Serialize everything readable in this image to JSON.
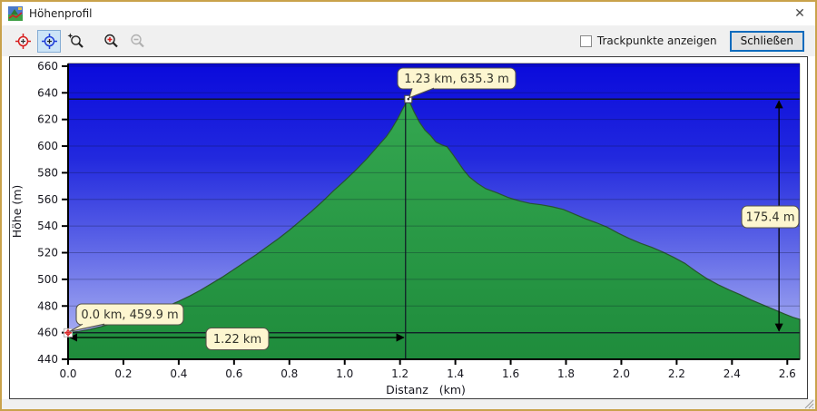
{
  "window": {
    "title": "Höhenprofil",
    "close_glyph": "✕"
  },
  "toolbar": {
    "tools": [
      {
        "icon": "red-target-icon",
        "selected": false
      },
      {
        "icon": "blue-target-icon",
        "selected": true
      },
      {
        "icon": "zoom-select-icon",
        "selected": false
      },
      {
        "icon": "zoom-in-icon",
        "selected": false
      },
      {
        "icon": "zoom-out-icon",
        "selected": false,
        "disabled": true
      }
    ],
    "trackpoints_label": "Trackpunkte anzeigen",
    "trackpoints_checked": false,
    "close_button": "Schließen"
  },
  "chart_data": {
    "type": "area",
    "title": "",
    "xlabel": "Distanz   (km)",
    "ylabel": "Höhe (m)",
    "xlim": [
      0,
      2.645
    ],
    "ylim": [
      440,
      662
    ],
    "xticks": [
      0.0,
      0.2,
      0.4,
      0.6,
      0.8,
      1.0,
      1.2,
      1.4,
      1.6,
      1.8,
      2.0,
      2.2,
      2.4,
      2.6
    ],
    "yticks": [
      440,
      460,
      480,
      500,
      520,
      540,
      560,
      580,
      600,
      620,
      640,
      660
    ],
    "grid": "horizontal",
    "series": [
      {
        "name": "elevation-profile",
        "points": [
          [
            0.0,
            459.9
          ],
          [
            0.04,
            461
          ],
          [
            0.08,
            462.5
          ],
          [
            0.12,
            464.5
          ],
          [
            0.16,
            467
          ],
          [
            0.2,
            469.5
          ],
          [
            0.24,
            472
          ],
          [
            0.28,
            474.5
          ],
          [
            0.32,
            477
          ],
          [
            0.36,
            480
          ],
          [
            0.4,
            483.5
          ],
          [
            0.44,
            487.5
          ],
          [
            0.48,
            492
          ],
          [
            0.52,
            497
          ],
          [
            0.56,
            502
          ],
          [
            0.6,
            507.5
          ],
          [
            0.64,
            513
          ],
          [
            0.68,
            518.5
          ],
          [
            0.72,
            524.5
          ],
          [
            0.76,
            530.5
          ],
          [
            0.8,
            537
          ],
          [
            0.84,
            544
          ],
          [
            0.88,
            551
          ],
          [
            0.92,
            558.5
          ],
          [
            0.96,
            566.5
          ],
          [
            1.0,
            574
          ],
          [
            1.04,
            582
          ],
          [
            1.08,
            590.5
          ],
          [
            1.12,
            600
          ],
          [
            1.15,
            607
          ],
          [
            1.17,
            613
          ],
          [
            1.19,
            620
          ],
          [
            1.21,
            628
          ],
          [
            1.23,
            635.3
          ],
          [
            1.25,
            626
          ],
          [
            1.27,
            618
          ],
          [
            1.29,
            612
          ],
          [
            1.31,
            608
          ],
          [
            1.33,
            603
          ],
          [
            1.35,
            601
          ],
          [
            1.37,
            599.5
          ],
          [
            1.39,
            594
          ],
          [
            1.41,
            588
          ],
          [
            1.43,
            582
          ],
          [
            1.45,
            577
          ],
          [
            1.48,
            572
          ],
          [
            1.51,
            568
          ],
          [
            1.55,
            565
          ],
          [
            1.59,
            561.5
          ],
          [
            1.63,
            559
          ],
          [
            1.67,
            557
          ],
          [
            1.71,
            556
          ],
          [
            1.75,
            554.5
          ],
          [
            1.79,
            552.5
          ],
          [
            1.83,
            549
          ],
          [
            1.87,
            545.5
          ],
          [
            1.91,
            542.5
          ],
          [
            1.95,
            539
          ],
          [
            1.99,
            534.5
          ],
          [
            2.03,
            530.5
          ],
          [
            2.07,
            527
          ],
          [
            2.11,
            524
          ],
          [
            2.15,
            520.5
          ],
          [
            2.19,
            516.5
          ],
          [
            2.23,
            512
          ],
          [
            2.27,
            506
          ],
          [
            2.31,
            500.5
          ],
          [
            2.35,
            496
          ],
          [
            2.39,
            492
          ],
          [
            2.43,
            488.5
          ],
          [
            2.47,
            484.5
          ],
          [
            2.51,
            481
          ],
          [
            2.55,
            477.5
          ],
          [
            2.59,
            474
          ],
          [
            2.62,
            471.5
          ],
          [
            2.645,
            470
          ]
        ]
      }
    ],
    "annotations": {
      "peak": {
        "x": 1.23,
        "y": 635.3,
        "label": "1.23 km, 635.3 m"
      },
      "start": {
        "x": 0.0,
        "y": 459.9,
        "label": "0.0 km, 459.9 m"
      },
      "horizontal_span": {
        "from_x": 0.0,
        "to_x": 1.22,
        "label": "1.22 km"
      },
      "vertical_span": {
        "top": 635.3,
        "bottom": 459.9,
        "at_x": 2.57,
        "label": "175.4 m"
      }
    },
    "colors": {
      "sky_top": "#0a0adc",
      "sky_mid": "#5a62e6",
      "sky_bottom": "#bcc0f5",
      "mountain_top": "#34a750",
      "mountain_bottom": "#1f8c3c",
      "mountain_stroke": "#27542f",
      "grid": "rgba(10,16,40,0.30)",
      "axis": "#000000",
      "tick_text": "#16161e",
      "bubble_fill": "#fdf6d0",
      "bubble_stroke": "#55524a",
      "bubble_text": "#33332b",
      "annotation_line": "#101626",
      "marker_red": "#d81e1e"
    }
  }
}
